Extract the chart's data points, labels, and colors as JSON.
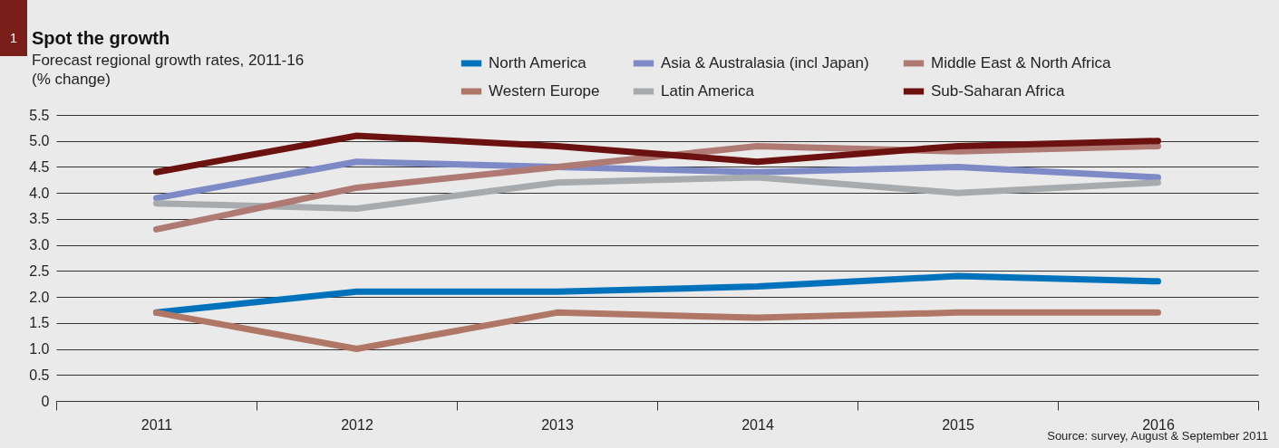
{
  "chart_data": {
    "type": "line",
    "title": "Spot the growth",
    "subtitle": "Forecast regional growth rates, 2011-16",
    "categories": [
      "2011",
      "2012",
      "2013",
      "2014",
      "2015",
      "2016"
    ],
    "series": [
      {
        "name": "North America",
        "color": "#0072bc",
        "values": [
          1.7,
          2.1,
          2.1,
          2.2,
          2.4,
          2.3
        ]
      },
      {
        "name": "Western Europe",
        "color": "#b07766",
        "values": [
          1.7,
          1.0,
          1.7,
          1.6,
          1.7,
          1.7
        ]
      },
      {
        "name": "Asia & Australasia (incl Japan)",
        "color": "#7d8ac6",
        "values": [
          3.9,
          4.6,
          4.5,
          4.4,
          4.5,
          4.3
        ]
      },
      {
        "name": "Latin America",
        "color": "#a8abae",
        "values": [
          3.8,
          3.7,
          4.2,
          4.3,
          4.0,
          4.2
        ]
      },
      {
        "name": "Middle East & North Africa",
        "color": "#b07a74",
        "values": [
          3.3,
          4.1,
          4.5,
          4.9,
          4.8,
          4.9
        ]
      },
      {
        "name": "Sub-Saharan Africa",
        "color": "#6b1210",
        "values": [
          4.4,
          5.1,
          4.9,
          4.6,
          4.9,
          5.0
        ]
      }
    ],
    "ylim": [
      0,
      5.5
    ],
    "yticks": [
      0,
      {
        "value": 0.5,
        "label": "0.5"
      },
      {
        "value": 1,
        "label": "1.0"
      },
      {
        "value": 1.5,
        "label": "1.5"
      },
      {
        "value": 2,
        "label": "2.0"
      },
      {
        "value": 2.5,
        "label": "2.5"
      },
      {
        "value": 3,
        "label": "3.0"
      },
      {
        "value": 3.5,
        "label": "3.5"
      },
      {
        "value": 4,
        "label": "4.0"
      },
      {
        "value": 4.5,
        "label": "4.5"
      },
      {
        "value": 5,
        "label": "5.0"
      },
      {
        "value": 5.5,
        "label": "5.5"
      }
    ],
    "grid": "y",
    "legend": "top",
    "annotations": [
      "1",
      "(% change)",
      "Source: survey, August & September 2011"
    ]
  }
}
